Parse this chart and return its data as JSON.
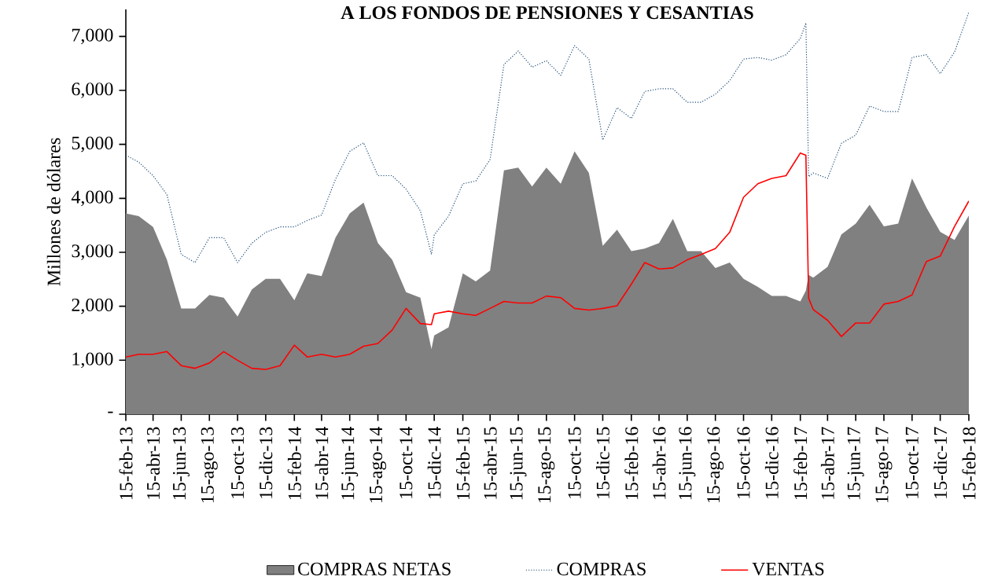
{
  "chart_data": {
    "type": "line",
    "title": "A LOS FONDOS DE PENSIONES Y CESANTIAS",
    "ylabel": "Millones  de dólares",
    "x": [
      "2013-02-15",
      "2013-03-15",
      "2013-04-15",
      "2013-05-15",
      "2013-06-15",
      "2013-07-15",
      "2013-08-15",
      "2013-09-15",
      "2013-10-15",
      "2013-11-15",
      "2013-12-15",
      "2014-01-15",
      "2014-02-15",
      "2014-03-15",
      "2014-04-15",
      "2014-05-15",
      "2014-06-15",
      "2014-07-15",
      "2014-08-15",
      "2014-09-15",
      "2014-10-15",
      "2014-11-15",
      "2014-12-09",
      "2014-12-15",
      "2015-01-15",
      "2015-02-15",
      "2015-03-15",
      "2015-04-15",
      "2015-05-15",
      "2015-06-15",
      "2015-07-15",
      "2015-08-15",
      "2015-09-15",
      "2015-10-15",
      "2015-11-15",
      "2015-12-15",
      "2016-01-15",
      "2016-02-15",
      "2016-03-15",
      "2016-04-15",
      "2016-05-15",
      "2016-06-15",
      "2016-07-15",
      "2016-08-15",
      "2016-09-15",
      "2016-10-15",
      "2016-11-15",
      "2016-12-15",
      "2017-01-15",
      "2017-02-15",
      "2017-02-27",
      "2017-03-05",
      "2017-03-15",
      "2017-04-15",
      "2017-05-15",
      "2017-06-15",
      "2017-07-15",
      "2017-08-15",
      "2017-09-15",
      "2017-10-15",
      "2017-11-15",
      "2017-12-15",
      "2018-01-15",
      "2018-02-15"
    ],
    "xlim": [
      "2013-02-15",
      "2018-02-15"
    ],
    "xticks": [
      {
        "value": "2013-02-15",
        "label": "15-feb-13"
      },
      {
        "value": "2013-04-15",
        "label": "15-abr-13"
      },
      {
        "value": "2013-06-15",
        "label": "15-jun-13"
      },
      {
        "value": "2013-08-15",
        "label": "15-ago-13"
      },
      {
        "value": "2013-10-15",
        "label": "15-oct-13"
      },
      {
        "value": "2013-12-15",
        "label": "15-dic-13"
      },
      {
        "value": "2014-02-15",
        "label": "15-feb-14"
      },
      {
        "value": "2014-04-15",
        "label": "15-abr-14"
      },
      {
        "value": "2014-06-15",
        "label": "15-jun-14"
      },
      {
        "value": "2014-08-15",
        "label": "15-ago-14"
      },
      {
        "value": "2014-10-15",
        "label": "15-oct-14"
      },
      {
        "value": "2014-12-15",
        "label": "15-dic-14"
      },
      {
        "value": "2015-02-15",
        "label": "15-feb-15"
      },
      {
        "value": "2015-04-15",
        "label": "15-abr-15"
      },
      {
        "value": "2015-06-15",
        "label": "15-jun-15"
      },
      {
        "value": "2015-08-15",
        "label": "15-ago-15"
      },
      {
        "value": "2015-10-15",
        "label": "15-oct-15"
      },
      {
        "value": "2015-12-15",
        "label": "15-dic-15"
      },
      {
        "value": "2016-02-15",
        "label": "15-feb-16"
      },
      {
        "value": "2016-04-15",
        "label": "15-abr-16"
      },
      {
        "value": "2016-06-15",
        "label": "15-jun-16"
      },
      {
        "value": "2016-08-15",
        "label": "15-ago-16"
      },
      {
        "value": "2016-10-15",
        "label": "15-oct-16"
      },
      {
        "value": "2016-12-15",
        "label": "15-dic-16"
      },
      {
        "value": "2017-02-15",
        "label": "15-feb-17"
      },
      {
        "value": "2017-04-15",
        "label": "15-abr-17"
      },
      {
        "value": "2017-06-15",
        "label": "15-jun-17"
      },
      {
        "value": "2017-08-15",
        "label": "15-ago-17"
      },
      {
        "value": "2017-10-15",
        "label": "15-oct-17"
      },
      {
        "value": "2017-12-15",
        "label": "15-dic-17"
      },
      {
        "value": "2018-02-15",
        "label": "15-feb-18"
      }
    ],
    "ylim": [
      0,
      7500
    ],
    "yticks": [
      {
        "value": 0,
        "label": "-"
      },
      {
        "value": 1000,
        "label": "1,000"
      },
      {
        "value": 2000,
        "label": "2,000"
      },
      {
        "value": 3000,
        "label": "3,000"
      },
      {
        "value": 4000,
        "label": "4,000"
      },
      {
        "value": 5000,
        "label": "5,000"
      },
      {
        "value": 6000,
        "label": "6,000"
      },
      {
        "value": 7000,
        "label": "7,000"
      }
    ],
    "legend": "bottom",
    "series": [
      {
        "name": "COMPRAS NETAS",
        "type": "area",
        "color": "#808080",
        "values": [
          3720,
          3670,
          3470,
          2860,
          1960,
          1960,
          2210,
          2160,
          1810,
          2310,
          2510,
          2510,
          2110,
          2610,
          2560,
          3270,
          3720,
          3920,
          3170,
          2860,
          2260,
          2160,
          1210,
          1460,
          1610,
          2610,
          2460,
          2660,
          4520,
          4570,
          4220,
          4570,
          4270,
          4870,
          4470,
          3120,
          3420,
          3020,
          3070,
          3170,
          3620,
          3020,
          3020,
          2710,
          2810,
          2510,
          2360,
          2190,
          2190,
          2090,
          2290,
          2580,
          2530,
          2730,
          3330,
          3530,
          3880,
          3480,
          3530,
          4370,
          3830,
          3380,
          3230,
          3680
        ]
      },
      {
        "name": "COMPRAS",
        "type": "line",
        "line_style": "dotted",
        "color": "#1f4e79",
        "values": [
          4800,
          4670,
          4420,
          4070,
          2960,
          2810,
          3270,
          3270,
          2810,
          3170,
          3370,
          3470,
          3470,
          3590,
          3690,
          4350,
          4870,
          5030,
          4420,
          4420,
          4170,
          3770,
          2960,
          3320,
          3670,
          4270,
          4320,
          4720,
          6480,
          6730,
          6430,
          6550,
          6280,
          6830,
          6580,
          5080,
          5680,
          5480,
          5980,
          6030,
          6030,
          5780,
          5780,
          5930,
          6180,
          6580,
          6610,
          6560,
          6660,
          6960,
          7250,
          4400,
          4470,
          4370,
          5020,
          5170,
          5710,
          5610,
          5610,
          6610,
          6660,
          6310,
          6710,
          7450
        ]
      },
      {
        "name": "VENTAS",
        "type": "line",
        "line_style": "solid",
        "color": "#ff0000",
        "values": [
          1060,
          1110,
          1110,
          1160,
          900,
          850,
          950,
          1160,
          1000,
          850,
          830,
          900,
          1280,
          1060,
          1110,
          1060,
          1110,
          1260,
          1310,
          1560,
          1960,
          1680,
          1660,
          1860,
          1910,
          1860,
          1830,
          1960,
          2090,
          2060,
          2060,
          2190,
          2160,
          1960,
          1930,
          1960,
          2010,
          2410,
          2810,
          2690,
          2710,
          2860,
          2960,
          3070,
          3370,
          4020,
          4270,
          4370,
          4420,
          4840,
          4800,
          2150,
          1940,
          1740,
          1440,
          1690,
          1690,
          2040,
          2090,
          2210,
          2830,
          2930,
          3480,
          3950
        ]
      }
    ]
  }
}
